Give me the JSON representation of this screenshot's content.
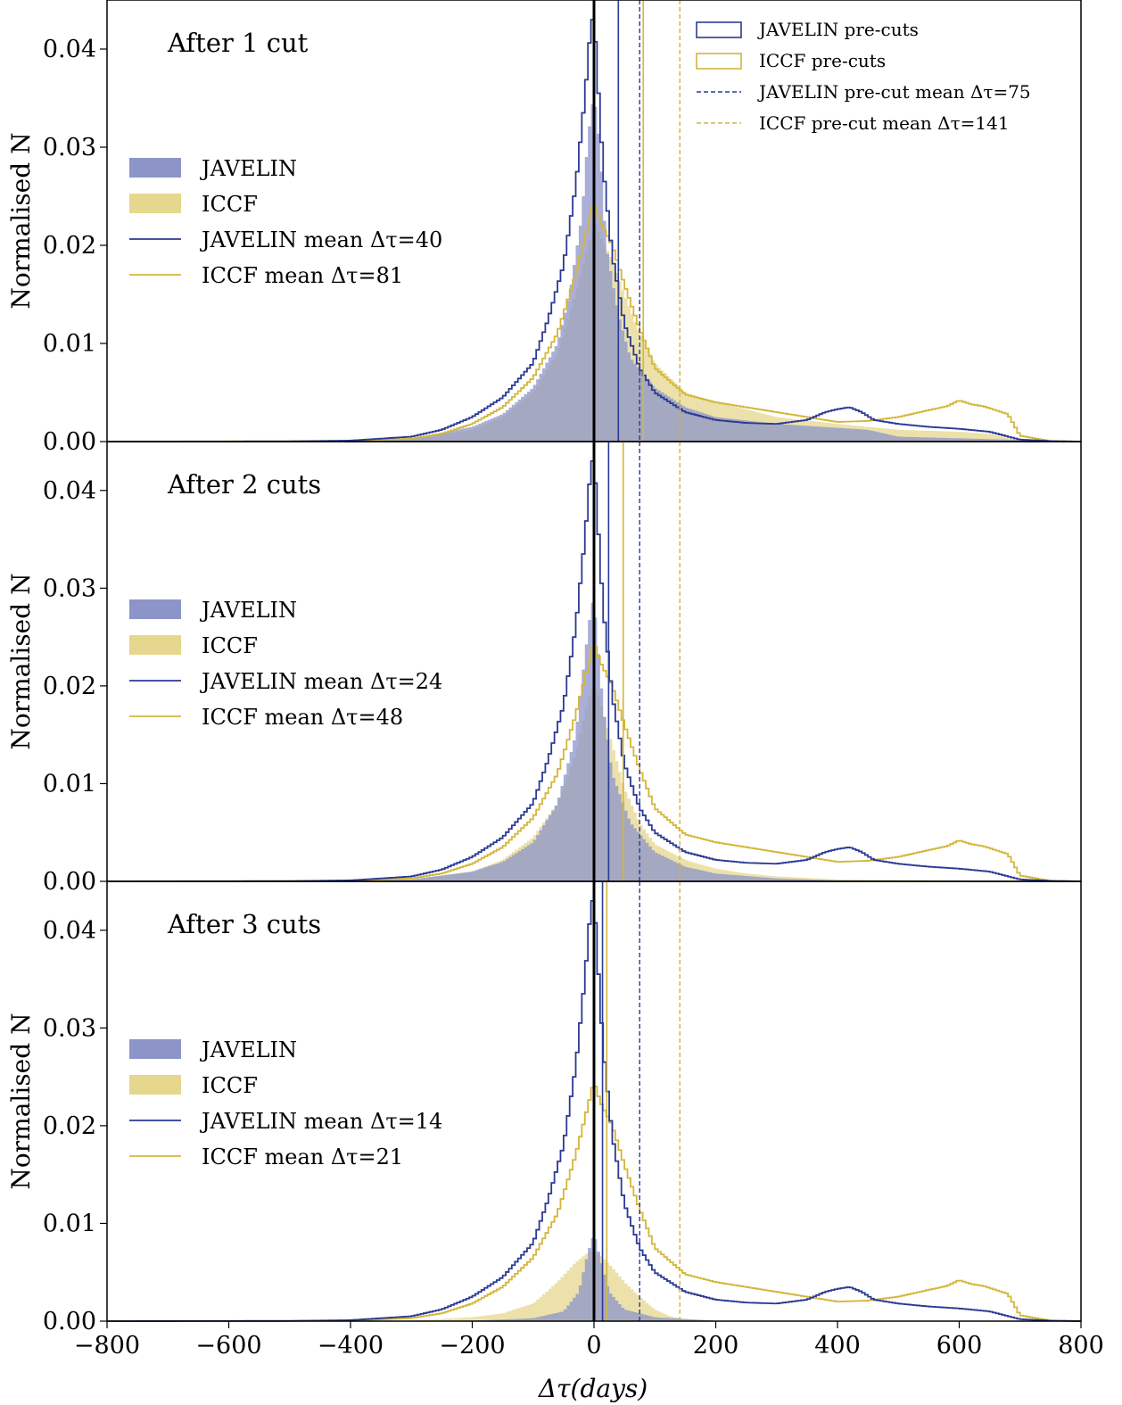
{
  "chart_data": {
    "type": "bar",
    "xlabel": "Δτ(days)",
    "ylabel": "Normalised N",
    "xlim": [
      -800,
      800
    ],
    "ylim": [
      0,
      0.045
    ],
    "x_ticks": [
      "−800",
      "−600",
      "−400",
      "−200",
      "0",
      "200",
      "400",
      "600",
      "800"
    ],
    "y_ticks": [
      "0.00",
      "0.01",
      "0.02",
      "0.03",
      "0.04"
    ],
    "colors": {
      "javelin": "#2a3a94",
      "iccf": "#d4b63a",
      "javelin_fill": "#8c94c8",
      "iccf_fill": "#e6d78f",
      "zero_line": "#000000"
    },
    "pre_cut_legend": {
      "javelin_pre_cuts": "JAVELIN pre-cuts",
      "iccf_pre_cuts": "ICCF pre-cuts",
      "javelin_pre_cut_mean": "JAVELIN pre-cut mean Δτ=75",
      "iccf_pre_cut_mean": "ICCF pre-cut mean Δτ=141"
    },
    "pre_cut_means": {
      "javelin": 75,
      "iccf": 141
    },
    "pre_cut_profiles": {
      "javelin": {
        "x": [
          -800,
          -500,
          -400,
          -300,
          -250,
          -200,
          -150,
          -100,
          -75,
          -50,
          -30,
          -15,
          -5,
          0,
          5,
          15,
          30,
          50,
          75,
          100,
          150,
          200,
          250,
          300,
          350,
          380,
          400,
          420,
          440,
          460,
          500,
          550,
          600,
          650,
          700,
          750,
          800
        ],
        "y": [
          0,
          2e-05,
          0.0001,
          0.0005,
          0.0012,
          0.0025,
          0.0045,
          0.008,
          0.0125,
          0.018,
          0.026,
          0.035,
          0.0425,
          0.0435,
          0.038,
          0.028,
          0.019,
          0.012,
          0.0075,
          0.005,
          0.003,
          0.0022,
          0.0019,
          0.0018,
          0.0022,
          0.003,
          0.0033,
          0.0035,
          0.003,
          0.0022,
          0.0018,
          0.0015,
          0.0013,
          0.001,
          0.0002,
          5e-05,
          0
        ]
      },
      "iccf": {
        "x": [
          -800,
          -400,
          -300,
          -250,
          -200,
          -150,
          -100,
          -60,
          -30,
          -10,
          0,
          10,
          30,
          50,
          75,
          100,
          150,
          200,
          250,
          300,
          350,
          400,
          450,
          500,
          550,
          580,
          600,
          620,
          640,
          660,
          680,
          700,
          750,
          800
        ],
        "y": [
          0,
          5e-05,
          0.0003,
          0.0008,
          0.0018,
          0.0035,
          0.0065,
          0.011,
          0.017,
          0.022,
          0.0245,
          0.0225,
          0.02,
          0.016,
          0.0115,
          0.0075,
          0.0048,
          0.004,
          0.0035,
          0.003,
          0.0025,
          0.002,
          0.0021,
          0.0025,
          0.0032,
          0.0036,
          0.0042,
          0.0038,
          0.0036,
          0.0032,
          0.0028,
          0.0006,
          5e-05,
          0
        ]
      }
    },
    "panels": [
      {
        "title": "After 1 cut",
        "legend": {
          "javelin": "JAVELIN",
          "iccf": "ICCF",
          "javelin_mean": "JAVELIN mean Δτ=40",
          "iccf_mean": "ICCF mean Δτ=81"
        },
        "means": {
          "javelin": 40,
          "iccf": 81
        },
        "javelin": {
          "x": [
            -800,
            -400,
            -300,
            -200,
            -150,
            -100,
            -60,
            -40,
            -20,
            -10,
            0,
            10,
            20,
            40,
            60,
            100,
            150,
            200,
            300,
            400,
            450,
            500,
            800
          ],
          "y": [
            0,
            5e-05,
            0.0003,
            0.0015,
            0.0028,
            0.0055,
            0.01,
            0.015,
            0.023,
            0.031,
            0.0355,
            0.03,
            0.02,
            0.013,
            0.0085,
            0.0055,
            0.0035,
            0.0025,
            0.0018,
            0.0014,
            0.0012,
            0.0005,
            0
          ]
        },
        "iccf": {
          "x": [
            -800,
            -400,
            -300,
            -200,
            -150,
            -100,
            -60,
            -30,
            -10,
            0,
            10,
            30,
            50,
            75,
            100,
            150,
            200,
            250,
            300,
            400,
            500,
            600,
            650,
            700,
            800
          ],
          "y": [
            0,
            5e-05,
            0.0003,
            0.0012,
            0.0025,
            0.005,
            0.009,
            0.015,
            0.02,
            0.0225,
            0.021,
            0.0185,
            0.015,
            0.011,
            0.008,
            0.005,
            0.004,
            0.0033,
            0.0025,
            0.0018,
            0.0012,
            0.001,
            0.0008,
            0.0001,
            0
          ]
        }
      },
      {
        "title": "After 2 cuts",
        "legend": {
          "javelin": "JAVELIN",
          "iccf": "ICCF",
          "javelin_mean": "JAVELIN mean Δτ=24",
          "iccf_mean": "ICCF mean Δτ=48"
        },
        "means": {
          "javelin": 24,
          "iccf": 48
        },
        "javelin": {
          "x": [
            -800,
            -300,
            -200,
            -150,
            -100,
            -60,
            -30,
            -15,
            -5,
            0,
            5,
            15,
            30,
            60,
            100,
            150,
            200,
            300,
            400,
            800
          ],
          "y": [
            0,
            0.0002,
            0.001,
            0.002,
            0.004,
            0.008,
            0.015,
            0.023,
            0.028,
            0.029,
            0.025,
            0.018,
            0.011,
            0.006,
            0.003,
            0.0015,
            0.0008,
            0.0003,
            0.0001,
            0
          ]
        },
        "iccf": {
          "x": [
            -800,
            -300,
            -200,
            -150,
            -100,
            -60,
            -30,
            -10,
            0,
            10,
            30,
            50,
            75,
            100,
            150,
            200,
            250,
            300,
            400,
            800
          ],
          "y": [
            0,
            0.0002,
            0.001,
            0.0022,
            0.0045,
            0.008,
            0.013,
            0.0185,
            0.02,
            0.0185,
            0.014,
            0.0095,
            0.006,
            0.0038,
            0.0022,
            0.0013,
            0.0008,
            0.0005,
            0.0002,
            0
          ]
        }
      },
      {
        "title": "After 3 cuts",
        "legend": {
          "javelin": "JAVELIN",
          "iccf": "ICCF",
          "javelin_mean": "JAVELIN mean Δτ=14",
          "iccf_mean": "ICCF mean Δτ=21"
        },
        "means": {
          "javelin": 14,
          "iccf": 21
        },
        "javelin": {
          "x": [
            -800,
            -200,
            -100,
            -50,
            -25,
            -10,
            0,
            10,
            25,
            50,
            100,
            200,
            800
          ],
          "y": [
            0,
            5e-05,
            0.0003,
            0.001,
            0.003,
            0.007,
            0.009,
            0.0065,
            0.003,
            0.0012,
            0.0004,
            5e-05,
            0
          ]
        },
        "iccf": {
          "x": [
            -800,
            -300,
            -200,
            -150,
            -100,
            -60,
            -30,
            -10,
            0,
            10,
            30,
            50,
            75,
            100,
            125,
            150,
            200,
            800
          ],
          "y": [
            0,
            5e-05,
            0.0004,
            0.0008,
            0.0018,
            0.004,
            0.006,
            0.007,
            0.0072,
            0.0068,
            0.0055,
            0.004,
            0.0025,
            0.0012,
            0.0005,
            0.0002,
            5e-05,
            0
          ]
        }
      }
    ]
  }
}
